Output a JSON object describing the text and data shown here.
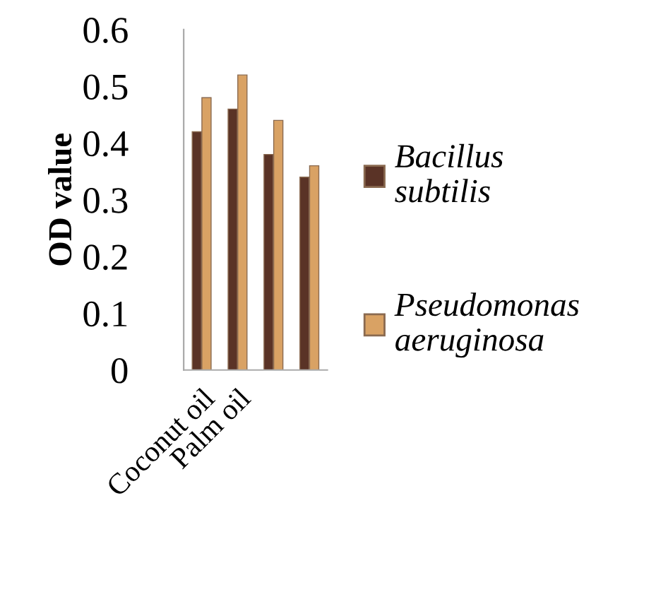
{
  "chart_data": {
    "type": "bar",
    "ylabel": "OD value",
    "categories": [
      "Coconut oil",
      "Palm oil",
      null,
      null
    ],
    "series": [
      {
        "name": "Bacillus subtilis",
        "color": "#5a3326",
        "values": [
          0.42,
          0.46,
          0.38,
          0.34
        ]
      },
      {
        "name": "Pseudomonas aeruginosa",
        "color": "#d9a264",
        "values": [
          0.48,
          0.52,
          0.44,
          0.36
        ]
      }
    ],
    "ylim": [
      0,
      0.6
    ],
    "yticks": [
      0,
      0.1,
      0.2,
      0.3,
      0.4,
      0.5,
      0.6
    ],
    "grid": false,
    "legend": "right"
  }
}
